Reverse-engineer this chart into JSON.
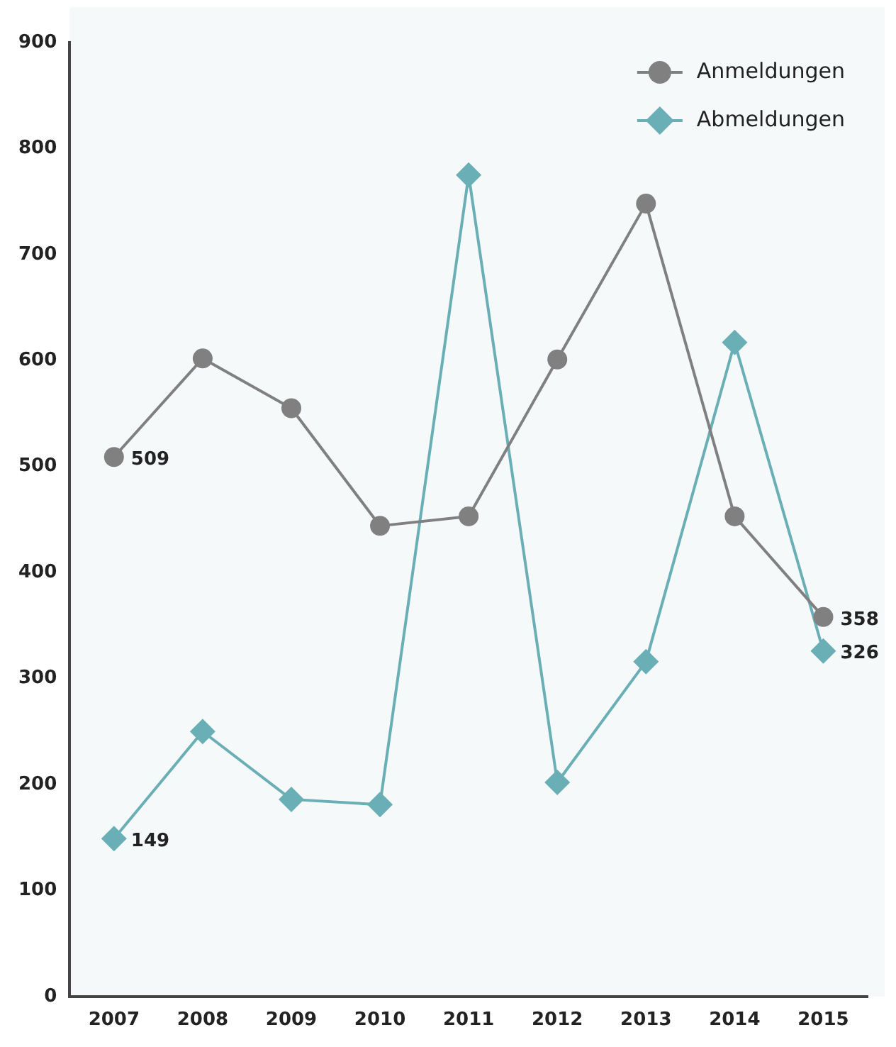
{
  "chart_data": {
    "type": "line",
    "categories": [
      "2007",
      "2008",
      "2009",
      "2010",
      "2011",
      "2012",
      "2013",
      "2014",
      "2015"
    ],
    "series": [
      {
        "name": "Anmeldungen",
        "color": "#808080",
        "marker": "circle",
        "values": [
          509,
          602,
          555,
          444,
          453,
          601,
          748,
          453,
          358
        ],
        "value_labels": [
          "509",
          null,
          null,
          null,
          null,
          null,
          null,
          null,
          "358"
        ]
      },
      {
        "name": "Abmeldungen",
        "color": "#6aafb5",
        "marker": "diamond",
        "values": [
          149,
          250,
          186,
          181,
          775,
          202,
          316,
          617,
          326
        ],
        "value_labels": [
          "149",
          null,
          null,
          null,
          null,
          null,
          null,
          null,
          "326"
        ]
      }
    ],
    "ylim": [
      0,
      900
    ],
    "yticks": [
      0,
      100,
      200,
      300,
      400,
      500,
      600,
      700,
      800,
      900
    ],
    "grid": false,
    "legend": "top right",
    "line_style": "solid"
  }
}
